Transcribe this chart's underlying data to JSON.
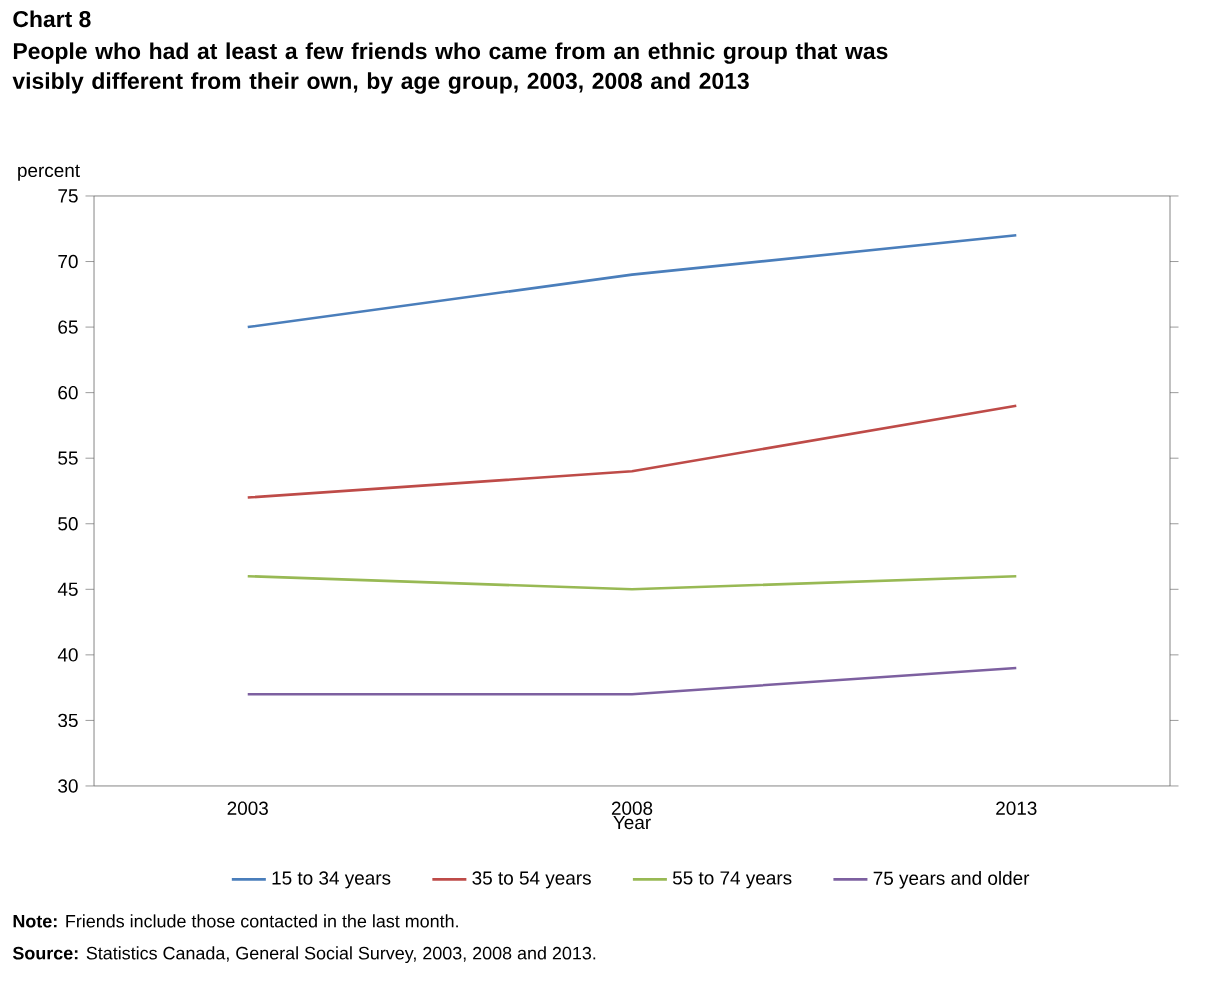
{
  "chart_data": {
    "type": "line",
    "title": "Chart 8",
    "subtitle": "People who had at least a few friends who came from an ethnic group that was visibly different from their own, by age group, 2003, 2008 and 2013",
    "ylabel": "percent",
    "xlabel": "Year",
    "categories": [
      "2003",
      "2008",
      "2013"
    ],
    "series": [
      {
        "name": "15 to 34 years",
        "color": "#4a7ebb",
        "values": [
          65,
          69,
          72
        ]
      },
      {
        "name": "35 to 54 years",
        "color": "#be4b48",
        "values": [
          52,
          54,
          59
        ]
      },
      {
        "name": "55 to 74 years",
        "color": "#98b954",
        "values": [
          46,
          45,
          46
        ]
      },
      {
        "name": "75 years and older",
        "color": "#7d60a0",
        "values": [
          37,
          37,
          39
        ]
      }
    ],
    "ylim": [
      30,
      75
    ],
    "yticks": [
      30,
      35,
      40,
      45,
      50,
      55,
      60,
      65,
      70,
      75
    ],
    "legend": "bottom",
    "marker": "none",
    "line_style": "solid",
    "annotations": [
      "**Note:** Friends include those contacted in the last month.",
      "**Source:** Statistics Canada, General Social Survey, 2003, 2008 and 2013."
    ]
  }
}
